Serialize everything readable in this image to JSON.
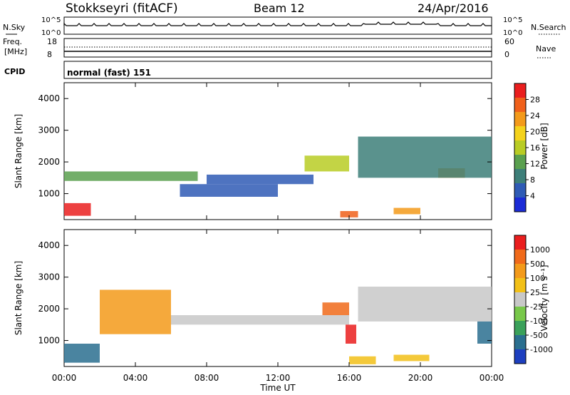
{
  "header": {
    "station": "Stokkseyri (fitACF)",
    "beam": "Beam 12",
    "date": "24/Apr/2016"
  },
  "summary": {
    "nsky_label": "N.Sky",
    "nsearch_label": "N.Search",
    "freq_label_1": "Freq.",
    "freq_label_2": "[MHz]",
    "nave_label": "Nave",
    "cpid_label": "CPID",
    "noise_ticks_left": [
      "10^5",
      "10^0"
    ],
    "noise_ticks_right": [
      "10^5",
      "10^0"
    ],
    "freq_ticks_left": [
      "18",
      "8"
    ],
    "nave_ticks_right": [
      "60",
      "0"
    ],
    "cpid_text": "normal (fast) 151"
  },
  "chart_data": [
    {
      "type": "heatmap",
      "panel": "power",
      "ylabel": "Slant Range [km]",
      "ylim": [
        180,
        4500
      ],
      "yticks": [
        1000,
        2000,
        3000,
        4000
      ],
      "xlabel": "Time UT",
      "xticks": [
        "00:00",
        "04:00",
        "08:00",
        "12:00",
        "16:00",
        "20:00",
        "00:00"
      ],
      "x_hours": [
        0,
        4,
        8,
        12,
        16,
        20,
        24
      ],
      "colorbar": {
        "label": "Power [dB]",
        "ticks": [
          "4",
          "8",
          "12",
          "16",
          "20",
          "24",
          "28"
        ],
        "colors": [
          "#1b2bd6",
          "#2f5bb5",
          "#3d7f79",
          "#5aa04f",
          "#b9cc24",
          "#f4d21b",
          "#f39a1a",
          "#f0601a",
          "#ea1e1e"
        ]
      },
      "bands": [
        {
          "t0": 0.0,
          "t1": 1.5,
          "r0": 300,
          "r1": 700,
          "level": 8
        },
        {
          "t0": 0.0,
          "t1": 7.5,
          "r0": 1400,
          "r1": 1700,
          "level": 3
        },
        {
          "t0": 6.5,
          "t1": 12.0,
          "r0": 900,
          "r1": 1300,
          "level": 1
        },
        {
          "t0": 8.0,
          "t1": 14.0,
          "r0": 1300,
          "r1": 1600,
          "level": 1
        },
        {
          "t0": 13.5,
          "t1": 16.0,
          "r0": 1700,
          "r1": 2200,
          "level": 4
        },
        {
          "t0": 15.5,
          "t1": 16.5,
          "r0": 250,
          "r1": 450,
          "level": 7
        },
        {
          "t0": 18.5,
          "t1": 20.0,
          "r0": 350,
          "r1": 550,
          "level": 6
        },
        {
          "t0": 21.0,
          "t1": 22.5,
          "r0": 1500,
          "r1": 1800,
          "level": 6
        },
        {
          "t0": 16.5,
          "t1": 24.0,
          "r0": 1500,
          "r1": 2800,
          "level": 2
        }
      ]
    },
    {
      "type": "heatmap",
      "panel": "velocity",
      "ylabel": "Slant Range [km]",
      "ylim": [
        180,
        4500
      ],
      "yticks": [
        1000,
        2000,
        3000,
        4000
      ],
      "xlabel": "Time UT",
      "xticks": [
        "00:00",
        "04:00",
        "08:00",
        "12:00",
        "16:00",
        "20:00",
        "00:00"
      ],
      "x_hours": [
        0,
        4,
        8,
        12,
        16,
        20,
        24
      ],
      "colorbar": {
        "label": "Velocity [m s⁻¹]",
        "ticks": [
          "1000",
          "500",
          "100",
          "25",
          "-25",
          "-100",
          "-500",
          "-1000"
        ],
        "colors": [
          "#1d3fbf",
          "#2a6f8f",
          "#3aa15a",
          "#78c84a",
          "#c8c8c8",
          "#f2c017",
          "#f39a1a",
          "#f06a1a",
          "#ea1e1e"
        ]
      },
      "bands": [
        {
          "t0": 0.0,
          "t1": 2.0,
          "r0": 300,
          "r1": 900,
          "level": 1
        },
        {
          "t0": 2.0,
          "t1": 6.0,
          "r0": 1200,
          "r1": 2600,
          "level": 6
        },
        {
          "t0": 6.0,
          "t1": 16.0,
          "r0": 1500,
          "r1": 1800,
          "level": 4
        },
        {
          "t0": 14.5,
          "t1": 16.0,
          "r0": 1800,
          "r1": 2200,
          "level": 7
        },
        {
          "t0": 15.8,
          "t1": 16.4,
          "r0": 900,
          "r1": 1500,
          "level": 8
        },
        {
          "t0": 16.5,
          "t1": 24.0,
          "r0": 1600,
          "r1": 2700,
          "level": 4
        },
        {
          "t0": 16.0,
          "t1": 17.5,
          "r0": 250,
          "r1": 500,
          "level": 5
        },
        {
          "t0": 18.5,
          "t1": 20.5,
          "r0": 350,
          "r1": 550,
          "level": 5
        },
        {
          "t0": 23.2,
          "t1": 24.0,
          "r0": 900,
          "r1": 1600,
          "level": 1
        }
      ]
    }
  ]
}
